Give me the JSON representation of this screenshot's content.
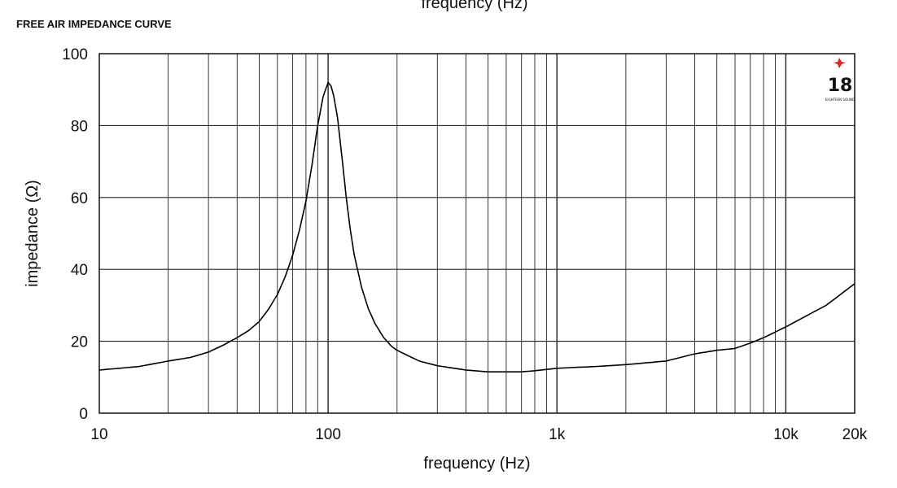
{
  "chart_data": {
    "type": "line",
    "title": "FREE AIR IMPEDANCE CURVE",
    "top_label": "frequency (Hz)",
    "xlabel": "frequency (Hz)",
    "ylabel": "impedance (Ω)",
    "x_scale": "log",
    "xlim": [
      10,
      20000
    ],
    "ylim": [
      0,
      100
    ],
    "x_ticks": [
      {
        "value": 10,
        "label": "10"
      },
      {
        "value": 100,
        "label": "100"
      },
      {
        "value": 1000,
        "label": "1k"
      },
      {
        "value": 10000,
        "label": "10k"
      },
      {
        "value": 20000,
        "label": "20k"
      }
    ],
    "y_ticks": [
      {
        "value": 0,
        "label": "0"
      },
      {
        "value": 20,
        "label": "20"
      },
      {
        "value": 40,
        "label": "40"
      },
      {
        "value": 60,
        "label": "60"
      },
      {
        "value": 80,
        "label": "80"
      },
      {
        "value": 100,
        "label": "100"
      }
    ],
    "grid": true,
    "line_color": "#000000",
    "grid_color": "#222222",
    "logo": {
      "text": "18",
      "subtext": "EIGHTEEN SOUND",
      "accent": "#d8262b"
    },
    "series": [
      {
        "x": [
          10,
          15,
          20,
          25,
          30,
          35,
          40,
          45,
          50,
          55,
          60,
          65,
          70,
          75,
          80,
          85,
          90,
          95,
          100,
          103,
          106,
          110,
          115,
          120,
          125,
          130,
          140,
          150,
          160,
          175,
          190,
          200,
          250,
          300,
          400,
          500,
          600,
          700,
          800,
          1000,
          1500,
          2000,
          3000,
          4000,
          5000,
          6000,
          7000,
          8000,
          10000,
          15000,
          20000
        ],
        "y": [
          12,
          13,
          14.5,
          15.5,
          17,
          19,
          21,
          23,
          25.5,
          29,
          33,
          38,
          44,
          51,
          59,
          69,
          80,
          88,
          92,
          91,
          88,
          82,
          71,
          60,
          51,
          44,
          35,
          29,
          25,
          21,
          18.5,
          17.5,
          14.5,
          13.2,
          12,
          11.5,
          11.5,
          11.5,
          11.8,
          12.5,
          13,
          13.5,
          14.5,
          16.5,
          17.5,
          18,
          19.5,
          21,
          24,
          30,
          36
        ]
      }
    ]
  }
}
